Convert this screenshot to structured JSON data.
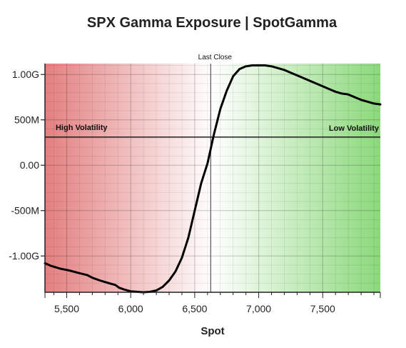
{
  "chart_data": {
    "type": "line",
    "title": "SPX Gamma Exposure | SpotGamma",
    "xlabel": "Spot",
    "ylabel": "",
    "xlim": [
      5330,
      7950
    ],
    "ylim": [
      -1.4,
      1.12
    ],
    "x_ticks": [
      5500,
      6000,
      6500,
      7000,
      7500
    ],
    "x_tick_labels": [
      "5,500",
      "6,000",
      "6,500",
      "7,000",
      "7,500"
    ],
    "y_ticks": [
      1.0,
      0.5,
      0.0,
      -0.5,
      -1.0
    ],
    "y_tick_labels": [
      "1.00G",
      "500M",
      "0.00",
      "-500M",
      "-1.00G"
    ],
    "y_unit": "billions",
    "grid": true,
    "background_gradient": {
      "left_color": "#e37f7f",
      "mid_color": "#ffffff",
      "right_color": "#8bd97b"
    },
    "reference_lines": [
      {
        "orientation": "vertical",
        "x": 6625,
        "label": "Last Close"
      },
      {
        "orientation": "horizontal",
        "y": 0.31,
        "label": "Low Volatility"
      }
    ],
    "annotations": [
      {
        "text": "High Volatility",
        "x": 5380,
        "y": 0.2
      }
    ],
    "series": [
      {
        "x": [
          5330,
          5380,
          5450,
          5520,
          5600,
          5660,
          5700,
          5760,
          5830,
          5880,
          5910,
          5950,
          6000,
          6050,
          6100,
          6150,
          6200,
          6250,
          6300,
          6350,
          6400,
          6450,
          6500,
          6550,
          6600,
          6650,
          6700,
          6750,
          6800,
          6850,
          6900,
          6950,
          7000,
          7050,
          7100,
          7150,
          7200,
          7250,
          7300,
          7400,
          7500,
          7550,
          7600,
          7650,
          7700,
          7750,
          7800,
          7850,
          7900,
          7950
        ],
        "values": [
          -1.08,
          -1.11,
          -1.14,
          -1.16,
          -1.19,
          -1.21,
          -1.24,
          -1.27,
          -1.3,
          -1.32,
          -1.35,
          -1.37,
          -1.39,
          -1.395,
          -1.4,
          -1.395,
          -1.38,
          -1.34,
          -1.27,
          -1.17,
          -1.02,
          -0.8,
          -0.5,
          -0.2,
          0.02,
          0.34,
          0.62,
          0.82,
          0.98,
          1.06,
          1.09,
          1.1,
          1.1,
          1.1,
          1.09,
          1.07,
          1.05,
          1.02,
          0.99,
          0.93,
          0.87,
          0.84,
          0.81,
          0.79,
          0.78,
          0.75,
          0.72,
          0.7,
          0.68,
          0.67
        ],
        "color": "#000000"
      }
    ]
  }
}
